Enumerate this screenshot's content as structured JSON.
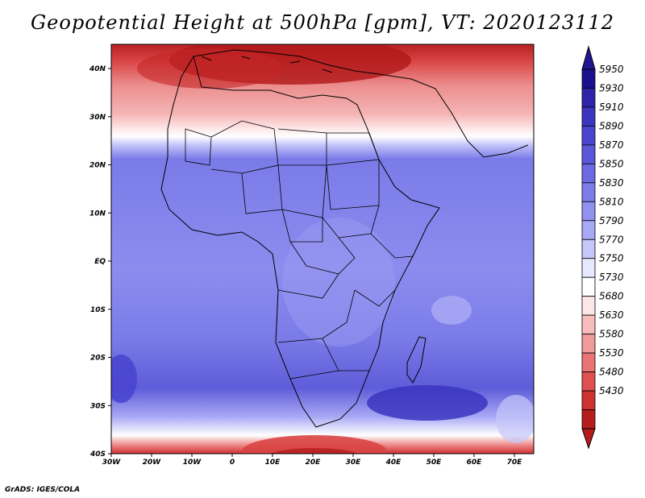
{
  "title": "Geopotential Height at 500hPa [gpm], VT: 2020123112",
  "credit": "GrADS: IGES/COLA",
  "lat_ticks": [
    "40N",
    "30N",
    "20N",
    "10N",
    "EQ",
    "10S",
    "20S",
    "30S",
    "40S"
  ],
  "lon_ticks": [
    "30W",
    "20W",
    "10W",
    "0",
    "10E",
    "20E",
    "30E",
    "40E",
    "50E",
    "60E",
    "70E"
  ],
  "colorbar": {
    "labels": [
      "5950",
      "5930",
      "5910",
      "5890",
      "5870",
      "5850",
      "5830",
      "5810",
      "5790",
      "5770",
      "5750",
      "5730",
      "5680",
      "5630",
      "5580",
      "5530",
      "5480",
      "5430"
    ],
    "colors": [
      "#1a0f8c",
      "#2d24a8",
      "#3b35c0",
      "#4a45cf",
      "#5a58d9",
      "#6b6ae2",
      "#7c7deb",
      "#9191f0",
      "#a8a9f5",
      "#c5c6fa",
      "#e6e8fd",
      "#ffffff",
      "#fde6e6",
      "#f7bdbd",
      "#f19a9a",
      "#ea7474",
      "#e05050",
      "#cf3030",
      "#b51d1d"
    ],
    "arrow_top": "#1f1690",
    "arrow_bottom": "#b51d1d"
  }
}
